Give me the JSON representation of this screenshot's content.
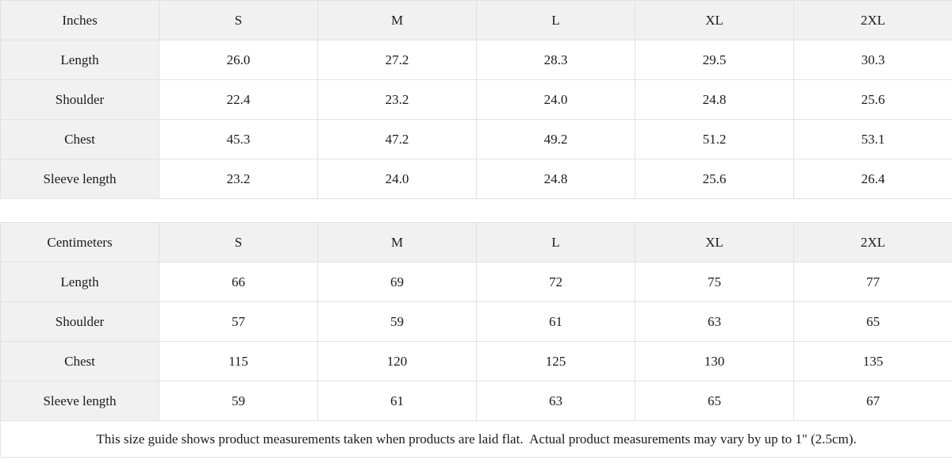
{
  "tables": [
    {
      "unit_label": "Inches",
      "sizes": [
        "S",
        "M",
        "L",
        "XL",
        "2XL"
      ],
      "rows": [
        {
          "label": "Length",
          "values": [
            "26.0",
            "27.2",
            "28.3",
            "29.5",
            "30.3"
          ]
        },
        {
          "label": "Shoulder",
          "values": [
            "22.4",
            "23.2",
            "24.0",
            "24.8",
            "25.6"
          ]
        },
        {
          "label": "Chest",
          "values": [
            "45.3",
            "47.2",
            "49.2",
            "51.2",
            "53.1"
          ]
        },
        {
          "label": "Sleeve length",
          "values": [
            "23.2",
            "24.0",
            "24.8",
            "25.6",
            "26.4"
          ]
        }
      ]
    },
    {
      "unit_label": "Centimeters",
      "sizes": [
        "S",
        "M",
        "L",
        "XL",
        "2XL"
      ],
      "rows": [
        {
          "label": "Length",
          "values": [
            "66",
            "69",
            "72",
            "75",
            "77"
          ]
        },
        {
          "label": "Shoulder",
          "values": [
            "57",
            "59",
            "61",
            "63",
            "65"
          ]
        },
        {
          "label": "Chest",
          "values": [
            "115",
            "120",
            "125",
            "130",
            "135"
          ]
        },
        {
          "label": "Sleeve length",
          "values": [
            "59",
            "61",
            "63",
            "65",
            "67"
          ]
        }
      ]
    }
  ],
  "footer": {
    "note": "This size guide shows product measurements taken when products are laid flat.  Actual product measurements may vary by up to 1\" (2.5cm)."
  },
  "colors": {
    "header_bg": "#f1f1f1",
    "cell_bg": "#ffffff",
    "border": "#e2e2e2",
    "text": "#1b1b1b"
  }
}
